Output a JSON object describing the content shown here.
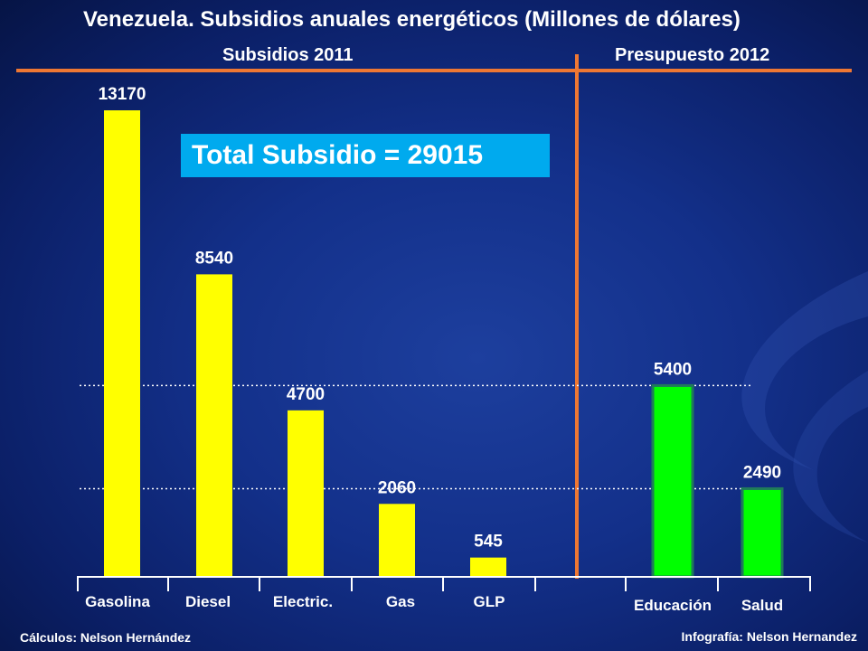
{
  "header": {
    "title": "Venezuela. Subsidios anuales energéticos  (Millones de dólares)",
    "left_subtitle": "Subsidios 2011",
    "right_subtitle": "Presupuesto  2012"
  },
  "callout": {
    "total_label": "Total Subsidio = 29015"
  },
  "footer": {
    "left_credit": "Cálculos: Nelson Hernández",
    "right_credit": "Infografía: Nelson Hernandez"
  },
  "colors": {
    "subsidy_bar": "#ffff00",
    "budget_bar": "#00ff00",
    "budget_bar_border": "#1f7a5a",
    "separator": "#ee7733",
    "axis": "#ffffff",
    "callout_bg": "#00aaee"
  },
  "chart_data": {
    "type": "bar",
    "categories": [
      "Gasolina",
      "Diesel",
      "Electric.",
      "Gas",
      "GLP",
      "Educación",
      "Salud"
    ],
    "groups": [
      {
        "label": "Subsidios 2011",
        "categories": [
          "Gasolina",
          "Diesel",
          "Electric.",
          "Gas",
          "GLP"
        ],
        "values": [
          13170,
          8540,
          4700,
          2060,
          545
        ]
      },
      {
        "label": "Presupuesto  2012",
        "categories": [
          "Educación",
          "Salud"
        ],
        "values": [
          5400,
          2490
        ]
      }
    ],
    "data_labels": [
      "13170",
      "8540",
      "4700",
      "2060",
      "545",
      "5400",
      "2490"
    ],
    "reference_lines": [
      5400,
      2490
    ],
    "ylim": [
      0,
      13170
    ],
    "grid": false,
    "legend": "none",
    "total": 29015
  }
}
